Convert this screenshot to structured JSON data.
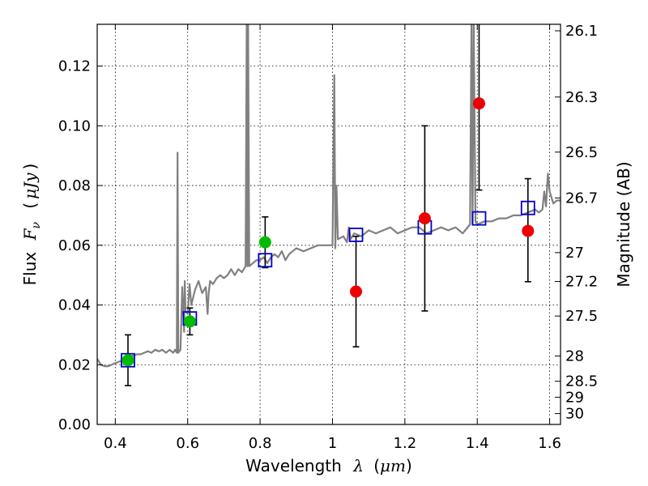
{
  "chart_data": {
    "type": "scatter",
    "xlabel": {
      "text": "Wavelength",
      "symbol": "λ",
      "unit_open": "(",
      "unit": "μm",
      "unit_close": ")"
    },
    "ylabel": {
      "text": "Flux",
      "symbol": "F",
      "subscript": "ν",
      "unit_open": "(",
      "unit": "μJy",
      "unit_close": ")"
    },
    "y2label": "Magnitude (AB)",
    "xlim": [
      0.35,
      1.63
    ],
    "ylim": [
      0.0,
      0.134
    ],
    "grid": true,
    "x_ticks": [
      0.4,
      0.6,
      0.8,
      1.0,
      1.2,
      1.4,
      1.6
    ],
    "x_tick_labels": [
      "0.4",
      "0.6",
      "0.8",
      "1",
      "1.2",
      "1.4",
      "1.6"
    ],
    "y_ticks": [
      0.0,
      0.02,
      0.04,
      0.06,
      0.08,
      0.1,
      0.12
    ],
    "y_tick_labels": [
      "0.00",
      "0.02",
      "0.04",
      "0.06",
      "0.08",
      "0.10",
      "0.12"
    ],
    "magnitude_ticks": [
      26.1,
      26.3,
      26.5,
      26.7,
      27.0,
      27.2,
      27.5,
      28.0,
      28.5,
      29.0,
      30.0
    ],
    "magnitude_tick_labels": [
      "26.1",
      "26.3",
      "26.5",
      "26.7",
      "27",
      "27.2",
      "27.5",
      "28",
      "28.5",
      "29",
      "30"
    ],
    "colors": {
      "sed": "#808080",
      "model": "#0000cc",
      "green": "#00bb00",
      "red": "#ee0000",
      "errorbar": "#000000"
    },
    "model_photometry": {
      "name": "model SED photometry (open squares)",
      "x": [
        0.435,
        0.606,
        0.814,
        1.065,
        1.255,
        1.405,
        1.54
      ],
      "y": [
        0.0215,
        0.0355,
        0.055,
        0.0635,
        0.066,
        0.069,
        0.0725
      ]
    },
    "observed_detections": {
      "name": "observed (green)",
      "x": [
        0.435,
        0.606,
        0.814
      ],
      "y": [
        0.0215,
        0.0345,
        0.061
      ],
      "err_lo": [
        0.0085,
        0.0045,
        0.0085
      ],
      "err_hi": [
        0.0085,
        0.0045,
        0.0085
      ]
    },
    "observed_nir": {
      "name": "observed (red)",
      "x": [
        1.065,
        1.255,
        1.405,
        1.54
      ],
      "y": [
        0.0445,
        0.069,
        0.1075,
        0.0648
      ],
      "err_lo": [
        0.0185,
        0.031,
        0.029,
        0.017
      ],
      "err_hi": [
        0.0185,
        0.031,
        0.0325,
        0.0175
      ]
    },
    "sed_spectrum": {
      "name": "model SED spectrum (gray line)",
      "x": [
        0.35,
        0.36,
        0.37,
        0.38,
        0.39,
        0.4,
        0.41,
        0.42,
        0.43,
        0.44,
        0.45,
        0.46,
        0.47,
        0.48,
        0.49,
        0.5,
        0.51,
        0.52,
        0.53,
        0.54,
        0.55,
        0.56,
        0.565,
        0.57,
        0.572,
        0.574,
        0.58,
        0.585,
        0.59,
        0.592,
        0.594,
        0.6,
        0.605,
        0.61,
        0.62,
        0.63,
        0.64,
        0.65,
        0.655,
        0.658,
        0.662,
        0.67,
        0.68,
        0.69,
        0.7,
        0.71,
        0.72,
        0.73,
        0.74,
        0.75,
        0.76,
        0.763,
        0.765,
        0.767,
        0.77,
        0.78,
        0.79,
        0.8,
        0.81,
        0.82,
        0.83,
        0.84,
        0.85,
        0.86,
        0.87,
        0.88,
        0.89,
        0.9,
        0.92,
        0.94,
        0.96,
        0.98,
        1.0,
        1.005,
        1.008,
        1.011,
        1.015,
        1.03,
        1.04,
        1.045,
        1.05,
        1.06,
        1.08,
        1.1,
        1.12,
        1.14,
        1.16,
        1.18,
        1.2,
        1.22,
        1.24,
        1.26,
        1.28,
        1.3,
        1.32,
        1.34,
        1.36,
        1.38,
        1.384,
        1.387,
        1.39,
        1.395,
        1.4,
        1.42,
        1.44,
        1.46,
        1.48,
        1.5,
        1.52,
        1.54,
        1.56,
        1.57,
        1.58,
        1.585,
        1.59,
        1.595,
        1.6,
        1.61,
        1.62,
        1.63
      ],
      "y": [
        0.022,
        0.02,
        0.0195,
        0.0195,
        0.02,
        0.0205,
        0.021,
        0.0215,
        0.0225,
        0.023,
        0.023,
        0.0235,
        0.0235,
        0.024,
        0.0245,
        0.024,
        0.025,
        0.0245,
        0.025,
        0.024,
        0.025,
        0.024,
        0.025,
        0.024,
        0.091,
        0.024,
        0.025,
        0.046,
        0.031,
        0.048,
        0.038,
        0.037,
        0.047,
        0.04,
        0.045,
        0.048,
        0.044,
        0.046,
        0.037,
        0.044,
        0.048,
        0.047,
        0.049,
        0.05,
        0.049,
        0.05,
        0.052,
        0.05,
        0.052,
        0.051,
        0.053,
        0.135,
        0.053,
        0.135,
        0.053,
        0.054,
        0.055,
        0.055,
        0.056,
        0.054,
        0.056,
        0.057,
        0.056,
        0.058,
        0.055,
        0.057,
        0.058,
        0.059,
        0.058,
        0.059,
        0.06,
        0.06,
        0.06,
        0.117,
        0.059,
        0.08,
        0.062,
        0.063,
        0.061,
        0.066,
        0.062,
        0.064,
        0.063,
        0.065,
        0.064,
        0.065,
        0.066,
        0.064,
        0.065,
        0.066,
        0.066,
        0.064,
        0.065,
        0.066,
        0.065,
        0.066,
        0.064,
        0.067,
        0.135,
        0.067,
        0.135,
        0.068,
        0.067,
        0.068,
        0.068,
        0.069,
        0.069,
        0.07,
        0.07,
        0.071,
        0.072,
        0.071,
        0.072,
        0.078,
        0.073,
        0.084,
        0.078,
        0.074,
        0.075,
        0.075
      ]
    }
  }
}
